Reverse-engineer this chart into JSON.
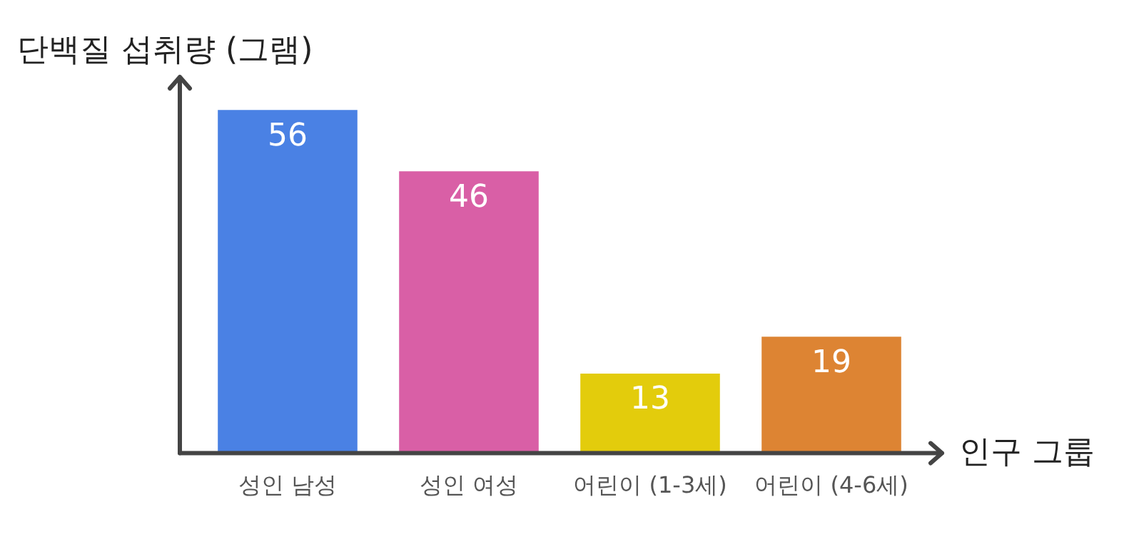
{
  "chart_data": {
    "type": "bar",
    "ylabel": "단백질 섭취량 (그램)",
    "xlabel": "인구 그룹",
    "categories": [
      "성인 남성",
      "성인 여성",
      "어린이 (1-3세)",
      "어린이 (4-6세)"
    ],
    "values": [
      56,
      46,
      13,
      19
    ],
    "colors": [
      "#4a81e4",
      "#d95fa6",
      "#e3cc0c",
      "#dd8433"
    ],
    "data_labels": true,
    "grid": false,
    "legend": false,
    "tick_labels": "x"
  }
}
